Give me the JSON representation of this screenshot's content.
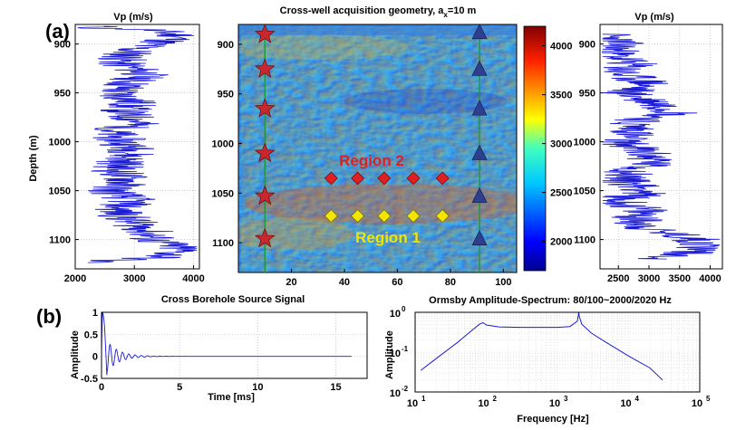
{
  "panel_labels": {
    "a": "(a)",
    "b": "(b)"
  },
  "chart_data": [
    {
      "id": "vp-left",
      "type": "line",
      "title": "Vp (m/s)",
      "xlabel": "",
      "ylabel": "Depth (m)",
      "xlim": [
        2000,
        4100
      ],
      "ylim": [
        880,
        1130
      ],
      "y_inverted": true,
      "xticks": [
        2000,
        3000,
        4000
      ],
      "yticks": [
        900,
        950,
        1000,
        1050,
        1100
      ],
      "grid": true,
      "line_color": "#1a1ad6",
      "sampled_profile": {
        "depth": [
          882,
          884,
          885,
          888,
          892,
          896,
          900,
          905,
          910,
          915,
          920,
          930,
          940,
          950,
          960,
          970,
          980,
          990,
          1000,
          1010,
          1020,
          1030,
          1040,
          1050,
          1060,
          1070,
          1080,
          1090,
          1100,
          1110,
          1118,
          1122,
          1124
        ],
        "vp": [
          2350,
          2350,
          3200,
          3500,
          3800,
          3600,
          3300,
          3000,
          2900,
          2800,
          2750,
          3200,
          2900,
          2700,
          3000,
          2800,
          3100,
          2600,
          2800,
          3000,
          2800,
          2700,
          2900,
          2600,
          2950,
          2700,
          2900,
          3200,
          3300,
          3800,
          3500,
          2400,
          2400
        ]
      }
    },
    {
      "id": "geometry-map",
      "type": "heatmap",
      "title": "Cross-well acquisition geometry, a",
      "title_sub": "x",
      "title_tail": "=10 m",
      "xlim": [
        0,
        105
      ],
      "ylim": [
        880,
        1130
      ],
      "y_inverted": true,
      "xticks": [
        20,
        40,
        60,
        80,
        100
      ],
      "yticks": [
        900,
        950,
        1000,
        1050,
        1100
      ],
      "colorbar": {
        "min": 1700,
        "max": 4200,
        "ticks": [
          2000,
          2500,
          3000,
          3500,
          4000
        ],
        "colormap": "jet"
      },
      "sources": {
        "marker": "star",
        "color": "#c8282d",
        "x": 10,
        "depth": [
          890,
          925,
          965,
          1010,
          1053,
          1096
        ]
      },
      "receivers": {
        "marker": "triangle",
        "color": "#2e3f8f",
        "x": 91,
        "depth": [
          888,
          925,
          965,
          1010,
          1053,
          1096
        ]
      },
      "region_2": {
        "label": "Region 2",
        "color": "#e02020",
        "marker": "diamond",
        "x": [
          35,
          45,
          55,
          66,
          77
        ],
        "depth": 1035
      },
      "region_1": {
        "label": "Region 1",
        "color": "#f2e600",
        "marker": "diamond",
        "x": [
          35,
          45,
          55,
          66,
          77
        ],
        "depth": 1073
      }
    },
    {
      "id": "vp-right",
      "type": "line",
      "title": "Vp (m/s)",
      "xlabel": "",
      "ylabel": "",
      "xlim": [
        2200,
        4200
      ],
      "ylim": [
        880,
        1130
      ],
      "y_inverted": true,
      "xticks": [
        2500,
        3000,
        3500,
        4000
      ],
      "yticks": [
        900,
        950,
        1000,
        1050,
        1100
      ],
      "grid": true,
      "line_color": "#1a1ad6",
      "sampled_profile": {
        "depth": [
          890,
          900,
          910,
          920,
          930,
          940,
          950,
          960,
          970,
          980,
          990,
          1000,
          1010,
          1020,
          1030,
          1040,
          1050,
          1060,
          1070,
          1080,
          1090,
          1100,
          1110,
          1120
        ],
        "vp": [
          2300,
          2500,
          2400,
          2700,
          2500,
          3000,
          2600,
          3100,
          3500,
          2700,
          2800,
          2500,
          2900,
          3100,
          2700,
          2600,
          3000,
          2500,
          2900,
          2800,
          3000,
          3800,
          3900,
          3200
        ]
      }
    },
    {
      "id": "source-signal",
      "type": "line",
      "title": "Cross Borehole Source Signal",
      "xlabel": "Time [ms]",
      "ylabel": "Amplitude",
      "xlim": [
        0,
        17
      ],
      "ylim": [
        -0.5,
        1
      ],
      "xticks": [
        0,
        5,
        10,
        15
      ],
      "yticks": [
        -0.5,
        0,
        0.5,
        1
      ],
      "grid": true,
      "line_color": "#1a1ad6",
      "signal": {
        "peak": 1,
        "decay_end_ms": 16,
        "ringing_period_ms": 0.4
      }
    },
    {
      "id": "ormsby-spectrum",
      "type": "line",
      "title": "Ormsby Amplitude-Spectrum: 80/100~2000/2020 Hz",
      "xlabel": "Frequency [Hz]",
      "ylabel": "Amplitude",
      "x_scale": "log",
      "y_scale": "log",
      "xlim": [
        10,
        100000
      ],
      "ylim": [
        0.01,
        1
      ],
      "xtick_exponents": [
        1,
        2,
        3,
        4,
        5
      ],
      "ytick_exponents": [
        -2,
        -1,
        0
      ],
      "grid": true,
      "line_color": "#1a1ad6",
      "spectrum": {
        "freq": [
          12,
          20,
          40,
          60,
          80,
          90,
          100,
          150,
          300,
          600,
          1000,
          1500,
          1900,
          2000,
          2020,
          2200,
          3000,
          5000,
          10000,
          20000,
          30000
        ],
        "amp": [
          0.035,
          0.07,
          0.18,
          0.33,
          0.5,
          0.55,
          0.48,
          0.43,
          0.42,
          0.42,
          0.42,
          0.44,
          0.6,
          1.0,
          0.8,
          0.5,
          0.3,
          0.17,
          0.08,
          0.04,
          0.02
        ]
      }
    }
  ]
}
